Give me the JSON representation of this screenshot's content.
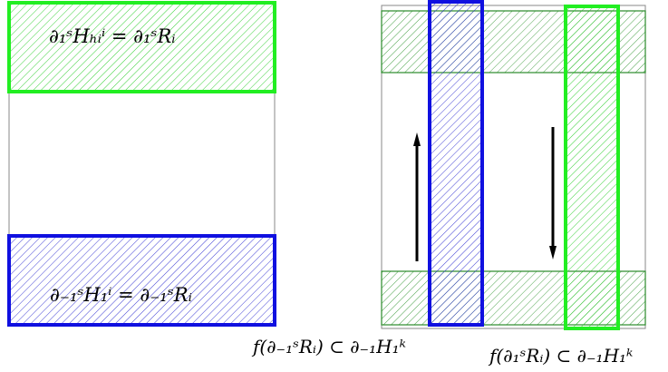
{
  "labels": {
    "top_left": "∂₁ˢHₕᵢⁱ = ∂₁ˢRᵢ",
    "bottom_left": "∂₋₁ˢH₁ⁱ = ∂₋₁ˢRᵢ",
    "caption_mid": "f(∂₋₁ˢRᵢ) ⊂ ∂₋₁H₁ᵏ",
    "caption_right": "f(∂₁ˢRᵢ) ⊂ ∂₋₁H₁ᵏ"
  },
  "colors": {
    "green": "#22ee22",
    "blue": "#1010e0",
    "dark_green": "#2a8a2a",
    "outline": "#888888",
    "arrow": "#000000"
  }
}
